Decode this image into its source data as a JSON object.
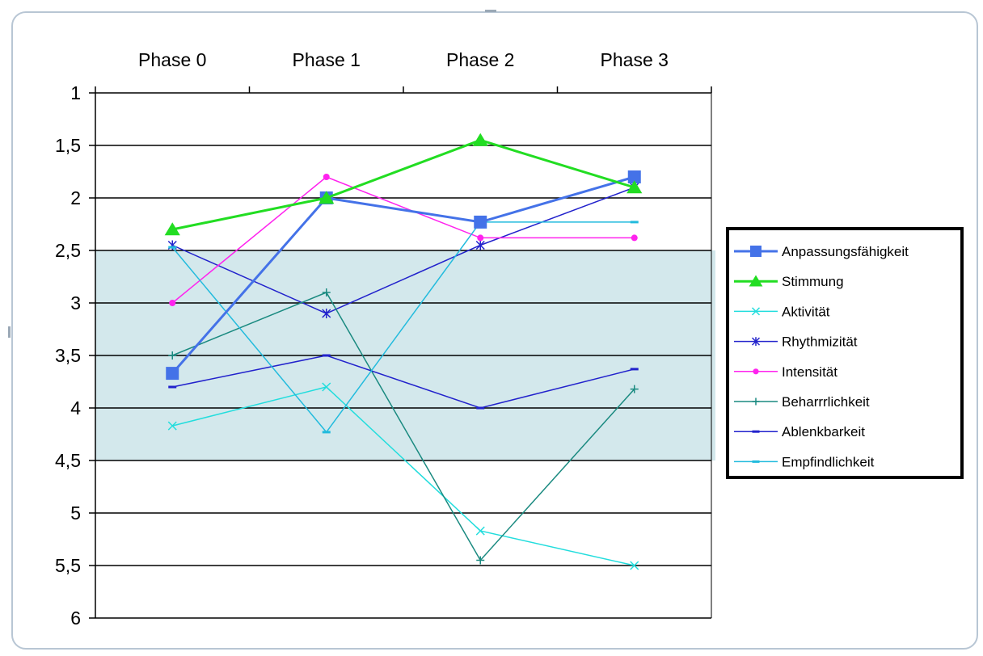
{
  "chart_data": {
    "type": "line",
    "title": "",
    "xlabel": "",
    "ylabel": "",
    "categories": [
      "Phase 0",
      "Phase 1",
      "Phase 2",
      "Phase 3"
    ],
    "y_axis": {
      "reversed": true,
      "min": 1,
      "max": 6,
      "ticks": [
        1,
        1.5,
        2,
        2.5,
        3,
        3.5,
        4,
        4.5,
        5,
        5.5,
        6
      ],
      "tick_labels": [
        "1",
        "1,5",
        "2",
        "2,5",
        "3",
        "3,5",
        "4",
        "4,5",
        "5",
        "5,5",
        "6"
      ]
    },
    "grid": true,
    "shaded_band": {
      "from": 2.5,
      "to": 4.5,
      "color": "#d3e8ec"
    },
    "legend_position": "right",
    "series": [
      {
        "name": "Anpassungsfähigkeit",
        "values": [
          3.67,
          2.0,
          2.23,
          1.8
        ],
        "color": "#4472e8",
        "marker": "square",
        "width": 3
      },
      {
        "name": "Stimmung",
        "values": [
          2.3,
          2.0,
          1.45,
          1.9
        ],
        "color": "#22dd22",
        "marker": "triangle",
        "width": 3
      },
      {
        "name": "Aktivität",
        "values": [
          4.17,
          3.8,
          5.17,
          5.5
        ],
        "color": "#22dddd",
        "marker": "x",
        "width": 1.5
      },
      {
        "name": "Rhythmizität",
        "values": [
          2.45,
          3.1,
          2.45,
          1.9
        ],
        "color": "#2222cc",
        "marker": "star",
        "width": 1.5
      },
      {
        "name": "Intensität",
        "values": [
          3.0,
          1.8,
          2.38,
          2.38
        ],
        "color": "#ff22ee",
        "marker": "circle",
        "width": 1.5
      },
      {
        "name": "Beharrrlichkeit",
        "values": [
          3.5,
          2.9,
          5.45,
          3.82
        ],
        "color": "#1a8a80",
        "marker": "plus",
        "width": 1.5
      },
      {
        "name": "Ablenkbarkeit",
        "values": [
          3.8,
          3.5,
          4.0,
          3.63
        ],
        "color": "#2222cc",
        "marker": "dash",
        "width": 1.5
      },
      {
        "name": "Empfindlichkeit",
        "values": [
          2.47,
          4.23,
          2.23,
          2.23
        ],
        "color": "#22bbdd",
        "marker": "dash",
        "width": 1.5
      }
    ]
  }
}
